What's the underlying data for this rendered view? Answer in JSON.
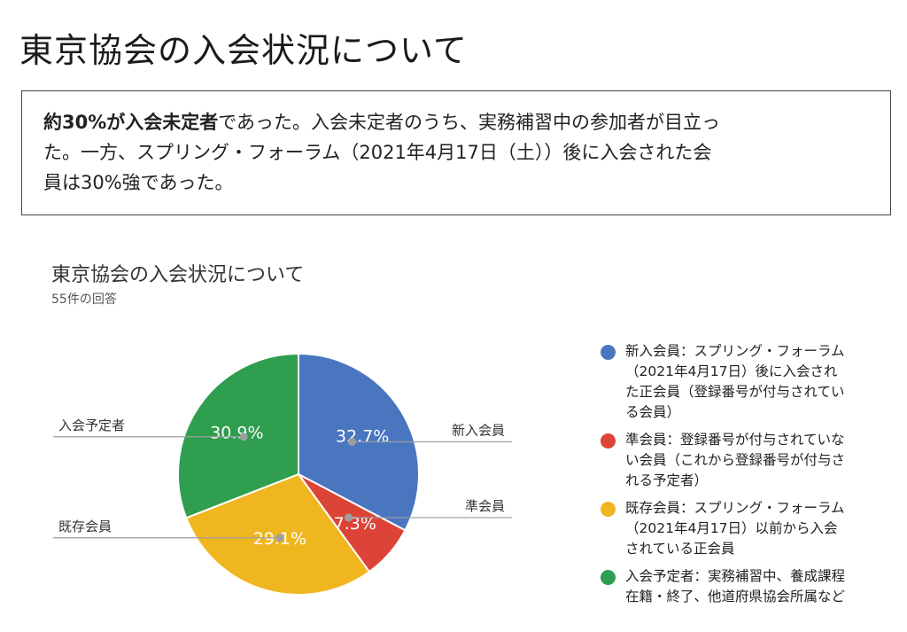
{
  "page": {
    "title": "東京協会の入会状況について"
  },
  "summary": {
    "bold_text": "約30%が入会未定者",
    "line1_rest": "であった。入会未定者のうち、実務補習中の参加者が目立っ",
    "line2": "た。一方、スプリング・フォーラム（2021年4月17日（土））後に入会された会",
    "line3": "員は30%強であった。"
  },
  "chart_data": {
    "type": "pie",
    "title": "東京協会の入会状況について",
    "subtitle": "55件の回答",
    "slices": [
      {
        "label": "新入会員",
        "value": 32.7,
        "display": "32.7%",
        "color": "#4a76c0",
        "legend": "新入会員：スプリング・フォーラム（2021年4月17日）後に入会された正会員（登録番号が付与されている会員）"
      },
      {
        "label": "準会員",
        "value": 7.3,
        "display": "7.3%",
        "color": "#db4437",
        "legend": "準会員：登録番号が付与されていない会員（これから登録番号が付与される予定者）"
      },
      {
        "label": "既存会員",
        "value": 29.1,
        "display": "29.1%",
        "color": "#f0b61f",
        "legend": "既存会員：スプリング・フォーラム（2021年4月17日）以前から入会されている正会員"
      },
      {
        "label": "入会予定者",
        "value": 30.9,
        "display": "30.9%",
        "color": "#2f9e4f",
        "legend": "入会予定者：実務補習中、養成課程在籍・終了、他道府県協会所属など"
      }
    ],
    "legend_position": "right",
    "start_angle": "top",
    "direction": "clockwise"
  },
  "legend_lines": [
    [
      "新入会員：スプリング・フォーラム",
      "（2021年4月17日）後に入会され",
      "た正会員（登録番号が付与されてい",
      "る会員）"
    ],
    [
      "準会員：登録番号が付与されていな",
      "い会員（これから登録番号が付与さ",
      "れる予定者）"
    ],
    [
      "既存会員：スプリング・フォーラム",
      "（2021年4月17日）以前から入会",
      "されている正会員"
    ],
    [
      "入会予定者：実務補習中、養成課程",
      "在籍・終了、他道府県協会所属など"
    ]
  ]
}
